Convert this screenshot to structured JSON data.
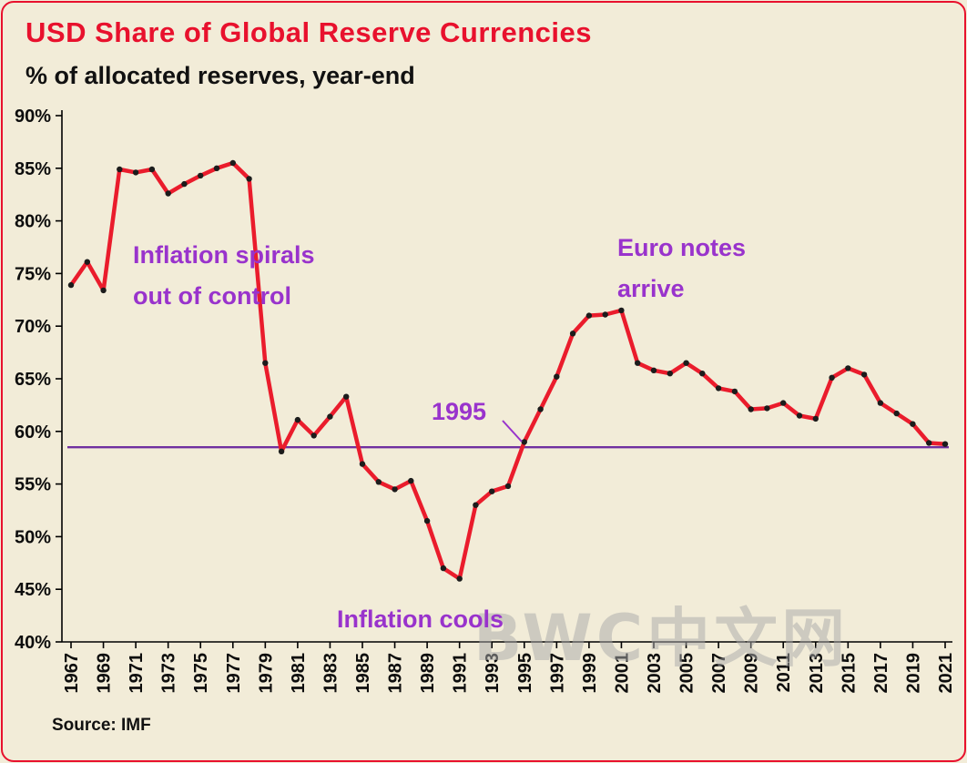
{
  "title": "USD Share of Global Reserve Currencies",
  "subtitle": "% of allocated reserves, year-end",
  "source_label": "Source: IMF",
  "watermark": "BWC中文网",
  "colors": {
    "background": "#f2ecd8",
    "title": "#e8112d",
    "line": "#ea1c2c",
    "marker": "#1c1c1c",
    "annotation": "#9933cc",
    "reference_line": "#7030a0",
    "axis": "#000000",
    "text": "#0d0d0d",
    "watermark": "#aaaaaa"
  },
  "chart_data": {
    "type": "line",
    "title": "USD Share of Global Reserve Currencies",
    "subtitle": "% of allocated reserves, year-end",
    "xlabel": "",
    "ylabel": "% of allocated reserves",
    "ylim": [
      40,
      90
    ],
    "ytick_step": 5,
    "grid": false,
    "legend": false,
    "x": [
      1967,
      1968,
      1969,
      1970,
      1971,
      1972,
      1973,
      1974,
      1975,
      1976,
      1977,
      1978,
      1979,
      1980,
      1981,
      1982,
      1983,
      1984,
      1985,
      1986,
      1987,
      1988,
      1989,
      1990,
      1991,
      1992,
      1993,
      1994,
      1995,
      1996,
      1997,
      1998,
      1999,
      2000,
      2001,
      2002,
      2003,
      2004,
      2005,
      2006,
      2007,
      2008,
      2009,
      2010,
      2011,
      2012,
      2013,
      2014,
      2015,
      2016,
      2017,
      2018,
      2019,
      2020,
      2021
    ],
    "values": [
      73.9,
      76.1,
      73.4,
      84.9,
      84.6,
      84.9,
      82.6,
      83.5,
      84.3,
      85.0,
      85.5,
      84.0,
      66.5,
      58.1,
      61.1,
      59.6,
      61.4,
      63.3,
      56.9,
      55.2,
      54.5,
      55.3,
      51.5,
      47.0,
      46.0,
      53.0,
      54.3,
      54.8,
      59.0,
      62.1,
      65.2,
      69.3,
      71.0,
      71.1,
      71.5,
      66.5,
      65.8,
      65.5,
      66.5,
      65.5,
      64.1,
      63.8,
      62.1,
      62.2,
      62.7,
      61.5,
      61.2,
      65.1,
      66.0,
      65.4,
      62.7,
      61.7,
      60.7,
      58.9,
      58.8
    ],
    "ytick_labels": [
      "90%",
      "85%",
      "80%",
      "75%",
      "70%",
      "65%",
      "60%",
      "55%",
      "50%",
      "45%",
      "40%"
    ],
    "xtick_labels": [
      "1967",
      "1969",
      "1971",
      "1973",
      "1975",
      "1977",
      "1979",
      "1981",
      "1983",
      "1985",
      "1987",
      "1989",
      "1991",
      "1993",
      "1995",
      "1997",
      "1999",
      "2001",
      "2003",
      "2005",
      "2007",
      "2009",
      "2011",
      "2013",
      "2015",
      "2017",
      "2019",
      "2021"
    ],
    "reference_line": {
      "value": 58.5
    },
    "annotations": [
      {
        "id": "inflation-spirals",
        "lines": [
          "Inflation spirals",
          "out of control"
        ]
      },
      {
        "id": "euro-notes",
        "lines": [
          "Euro notes",
          "arrive"
        ]
      },
      {
        "id": "year-1995",
        "lines": [
          "1995"
        ]
      },
      {
        "id": "inflation-cools",
        "lines": [
          "Inflation cools"
        ]
      }
    ],
    "source": "Source: IMF"
  }
}
